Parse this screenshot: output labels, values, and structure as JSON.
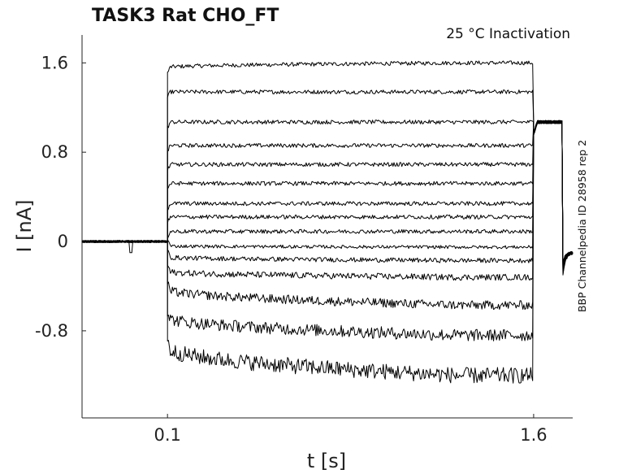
{
  "chart_data": {
    "type": "line",
    "title": "TASK3  Rat  CHO_FT",
    "subtitle": "25 °C  Inactivation",
    "xlabel": "t [s]",
    "ylabel": "I [nA]",
    "side_label": "BBP Channelpedia ID 28958 rep 2",
    "xlim": [
      -0.25,
      1.76
    ],
    "ylim": [
      -1.58,
      1.85
    ],
    "xticks": [
      {
        "value": 0.1,
        "label": "0.1"
      },
      {
        "value": 1.6,
        "label": "1.6"
      }
    ],
    "yticks": [
      {
        "value": 1.6,
        "label": "1.6"
      },
      {
        "value": 0.8,
        "label": "0.8"
      },
      {
        "value": 0,
        "label": "0"
      },
      {
        "value": -0.8,
        "label": "-0.8"
      }
    ],
    "grid": false,
    "line_color": "#000000",
    "protocol": {
      "baseline_start": -0.25,
      "step_on": 0.1,
      "step_off": 1.6,
      "end": 1.76,
      "tail_switch": 1.72,
      "tail_current_1": 1.07,
      "tail_current_2": -0.1
    },
    "sweeps": [
      {
        "plateau": 1.6,
        "start": 1.56
      },
      {
        "plateau": 1.34,
        "start": 1.34
      },
      {
        "plateau": 1.07,
        "start": 1.07
      },
      {
        "plateau": 0.86,
        "start": 0.86
      },
      {
        "plateau": 0.69,
        "start": 0.69
      },
      {
        "plateau": 0.52,
        "start": 0.52
      },
      {
        "plateau": 0.34,
        "start": 0.34
      },
      {
        "plateau": 0.22,
        "start": 0.22
      },
      {
        "plateau": 0.09,
        "start": 0.09
      },
      {
        "plateau": -0.05,
        "start": -0.04
      },
      {
        "plateau": -0.17,
        "start": -0.14
      },
      {
        "plateau": -0.32,
        "start": -0.27
      },
      {
        "plateau": -0.57,
        "start": -0.43
      },
      {
        "plateau": -0.84,
        "start": -0.68
      },
      {
        "plateau": -1.2,
        "start": -0.95
      }
    ]
  }
}
